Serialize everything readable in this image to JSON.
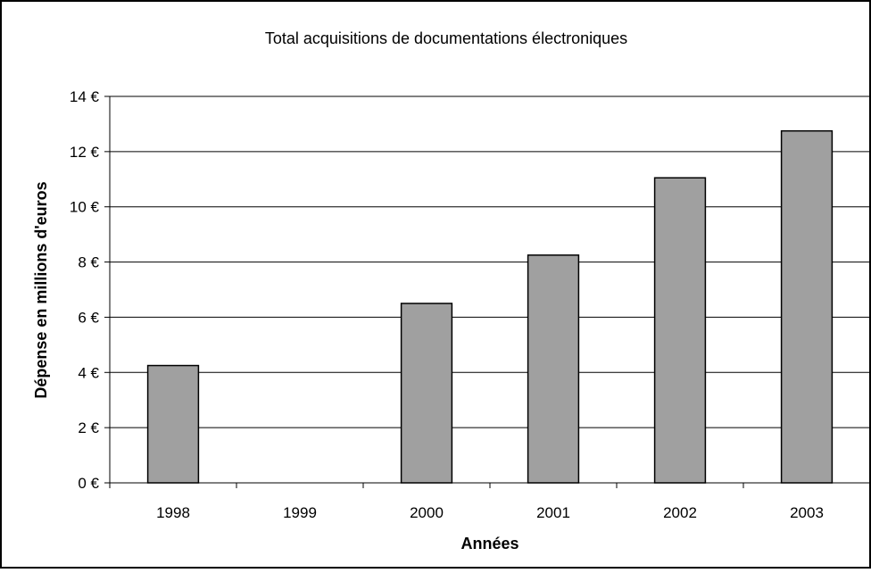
{
  "chart_data": {
    "type": "bar",
    "title": "Total acquisitions de documentations électroniques",
    "xlabel": "Années",
    "ylabel": "Dépense en millions d'euros",
    "categories": [
      "1998",
      "1999",
      "2000",
      "2001",
      "2002",
      "2003"
    ],
    "values": [
      4.25,
      null,
      6.5,
      8.25,
      11.05,
      12.75
    ],
    "ylim": [
      0,
      14
    ],
    "y_ticks": [
      0,
      2,
      4,
      6,
      8,
      10,
      12,
      14
    ],
    "y_tick_labels": [
      "0 €",
      "2 €",
      "4 €",
      "6 €",
      "8 €",
      "10 €",
      "12 €",
      "14 €"
    ],
    "grid": true,
    "legend": false,
    "colors": {
      "bar_fill": "#a0a0a0",
      "bar_stroke": "#000000",
      "grid": "#000000",
      "background": "#ffffff"
    }
  }
}
